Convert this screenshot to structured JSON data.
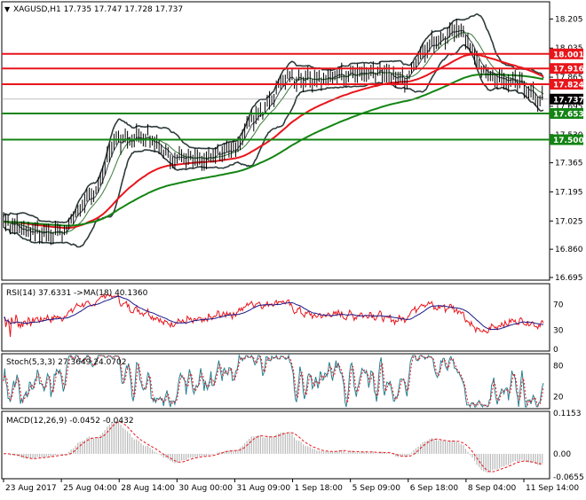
{
  "header": {
    "symbol_line": "XAGUSD,H1  17.735 17.747 17.728 17.737",
    "arrow": "▼"
  },
  "price_axis": {
    "ticks": [
      "18.205",
      "18.035",
      "17.865",
      "17.695",
      "17.530",
      "17.365",
      "17.195",
      "17.025",
      "16.860",
      "16.695"
    ],
    "price_tags": [
      {
        "value": "18.001",
        "color": "#e8151b"
      },
      {
        "value": "17.916",
        "color": "#e8151b"
      },
      {
        "value": "17.824",
        "color": "#e8151b"
      },
      {
        "value": "17.737",
        "color": "#000000"
      },
      {
        "value": "17.653",
        "color": "#138413"
      },
      {
        "value": "17.500",
        "color": "#138413"
      }
    ]
  },
  "rsi": {
    "title": "RSI(14) 37.6331  ->MA(18) 40.1360",
    "ticks": [
      "70",
      "30",
      "0"
    ]
  },
  "stoch": {
    "title": "Stoch(5,3,3) 27.3649 24.0702",
    "ticks": [
      "80",
      "20"
    ]
  },
  "macd": {
    "title": "MACD(12,26,9) -0.0452 -0.0432",
    "ticks": [
      "0.1153",
      "0.00",
      "-0.0655"
    ]
  },
  "time_axis": {
    "labels": [
      "23 Aug 2017",
      "25 Aug 04:00",
      "28 Aug 14:00",
      "30 Aug 00:00",
      "31 Aug 09:00",
      "1 Sep 18:00",
      "5 Sep 09:00",
      "6 Sep 18:00",
      "8 Sep 04:00",
      "11 Sep 14:00"
    ]
  },
  "colors": {
    "resistance": "#e8151b",
    "support": "#138413",
    "ma_fast": "#e8151b",
    "ma_slow": "#138413",
    "band": "#2f3b3b"
  },
  "chart_data": {
    "type": "line",
    "ylim": [
      16.695,
      18.29
    ],
    "x": [
      "23 Aug 2017",
      "24 Aug",
      "25 Aug 04:00",
      "25 Aug 18:00",
      "28 Aug 14:00",
      "29 Aug",
      "30 Aug 00:00",
      "30 Aug 18:00",
      "31 Aug 09:00",
      "31 Aug 20:00",
      "1 Sep 18:00",
      "4 Sep",
      "5 Sep 09:00",
      "5 Sep 20:00",
      "6 Sep 18:00",
      "7 Sep 12:00",
      "8 Sep 04:00",
      "8 Sep 16:00",
      "11 Sep 04:00",
      "11 Sep 14:00"
    ],
    "series": [
      {
        "name": "close",
        "values": [
          17.02,
          16.96,
          16.96,
          17.15,
          17.5,
          17.52,
          17.4,
          17.38,
          17.44,
          17.66,
          17.86,
          17.85,
          17.88,
          17.9,
          17.86,
          18.05,
          18.15,
          17.88,
          17.84,
          17.737
        ]
      }
    ],
    "horizontal_levels": {
      "resistance": [
        18.001,
        17.916,
        17.824
      ],
      "support": [
        17.653,
        17.5
      ]
    },
    "last_price": 17.737
  }
}
